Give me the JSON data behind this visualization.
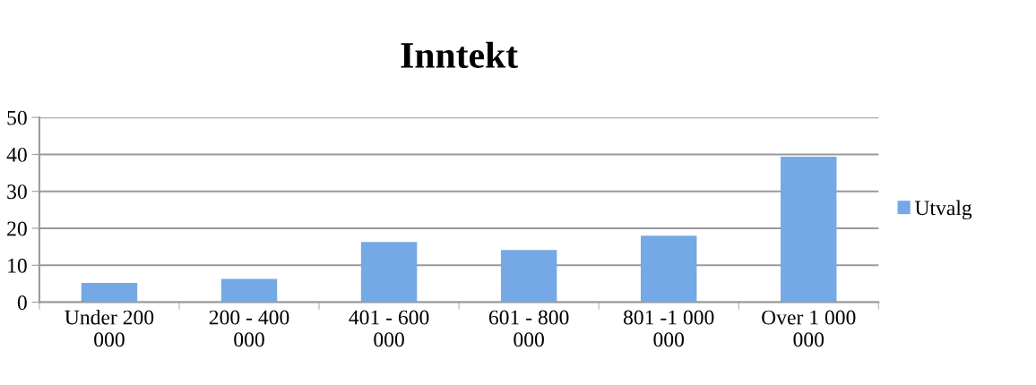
{
  "chart_data": {
    "type": "bar",
    "title": "Inntekt",
    "categories": [
      "Under 200 000",
      "200 - 400 000",
      "401 - 600 000",
      "601 - 800 000",
      "801 -1 000 000",
      "Over 1 000 000"
    ],
    "series": [
      {
        "name": "Utvalg",
        "color": "#74a9e6",
        "values": [
          5.2,
          6.3,
          16.3,
          14.1,
          18.0,
          39.4
        ]
      }
    ],
    "ylim": [
      0,
      50
    ],
    "yticks": [
      0,
      10,
      20,
      30,
      40,
      50
    ],
    "grid": "y",
    "legend": "right"
  }
}
